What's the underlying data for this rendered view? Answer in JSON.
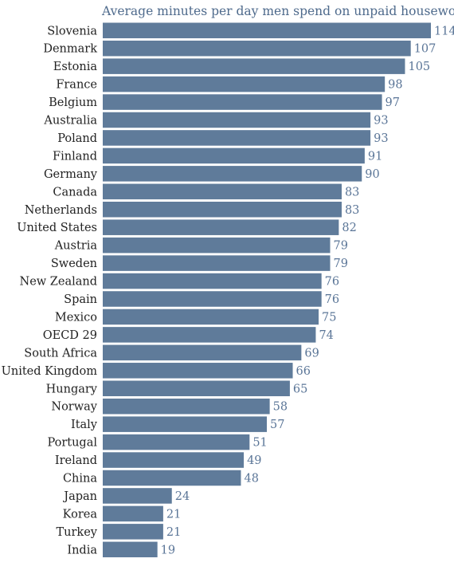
{
  "chart_data": {
    "type": "bar",
    "orientation": "horizontal",
    "title": "Average minutes per day men spend on unpaid housework",
    "xlabel": "",
    "ylabel": "",
    "grid": false,
    "legend": "none",
    "xlim": [
      0,
      114
    ],
    "bar_color": "#5f7b9a",
    "categories": [
      "Slovenia",
      "Denmark",
      "Estonia",
      "France",
      "Belgium",
      "Australia",
      "Poland",
      "Finland",
      "Germany",
      "Canada",
      "Netherlands",
      "United States",
      "Austria",
      "Sweden",
      "New Zealand",
      "Spain",
      "Mexico",
      "OECD 29",
      "South Africa",
      "United Kingdom",
      "Hungary",
      "Norway",
      "Italy",
      "Portugal",
      "Ireland",
      "China",
      "Japan",
      "Korea",
      "Turkey",
      "India"
    ],
    "values": [
      114,
      107,
      105,
      98,
      97,
      93,
      93,
      91,
      90,
      83,
      83,
      82,
      79,
      79,
      76,
      76,
      75,
      74,
      69,
      66,
      65,
      58,
      57,
      51,
      49,
      48,
      24,
      21,
      21,
      19
    ]
  }
}
